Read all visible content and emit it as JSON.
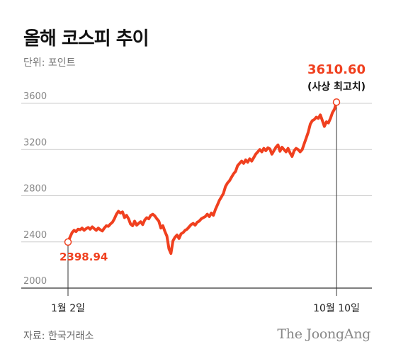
{
  "title": "올해 코스피 추이",
  "unit_label": "단위: 포인트",
  "source": "자료: 한국거래소",
  "brand": "The JoongAng",
  "colors": {
    "line": "#f0401f",
    "grid": "#cccccc",
    "axis": "#333333",
    "text": "#222222"
  },
  "chart_data": {
    "type": "line",
    "title": "올해 코스피 추이",
    "unit": "단위: 포인트",
    "ylim": [
      2000,
      3700
    ],
    "yticks": [
      2000,
      2400,
      2800,
      3200,
      3600
    ],
    "ytick_labels": [
      "2000",
      "2400",
      "2800",
      "3200",
      "3600"
    ],
    "grid": true,
    "xlabels": [
      "1월 2일",
      "10월 10일"
    ],
    "start": {
      "label": "1월 2일",
      "value": 2398.94,
      "value_label": "2398.94"
    },
    "end": {
      "label": "10월 10일",
      "value": 3610.6,
      "value_label": "3610.60",
      "note": "(사상 최고치)"
    },
    "series": [
      {
        "values": [
          2398.94,
          2440,
          2480,
          2500,
          2490,
          2510,
          2505,
          2520,
          2500,
          2515,
          2525,
          2510,
          2530,
          2515,
          2500,
          2520,
          2505,
          2495,
          2520,
          2540,
          2535,
          2555,
          2570,
          2600,
          2640,
          2665,
          2650,
          2660,
          2610,
          2630,
          2600,
          2555,
          2540,
          2580,
          2545,
          2560,
          2575,
          2550,
          2590,
          2610,
          2600,
          2630,
          2640,
          2625,
          2600,
          2580,
          2520,
          2540,
          2490,
          2450,
          2340,
          2300,
          2410,
          2440,
          2460,
          2430,
          2470,
          2480,
          2500,
          2510,
          2530,
          2550,
          2560,
          2545,
          2570,
          2580,
          2600,
          2610,
          2620,
          2640,
          2620,
          2650,
          2630,
          2680,
          2720,
          2760,
          2790,
          2820,
          2880,
          2910,
          2930,
          2960,
          2990,
          3010,
          3060,
          3080,
          3100,
          3080,
          3110,
          3090,
          3120,
          3100,
          3130,
          3160,
          3180,
          3200,
          3180,
          3210,
          3190,
          3215,
          3205,
          3160,
          3190,
          3220,
          3240,
          3185,
          3220,
          3200,
          3180,
          3210,
          3170,
          3140,
          3190,
          3210,
          3200,
          3180,
          3200,
          3250,
          3300,
          3350,
          3420,
          3450,
          3460,
          3480,
          3470,
          3500,
          3450,
          3400,
          3440,
          3430,
          3470,
          3520,
          3550,
          3610.6
        ]
      }
    ]
  }
}
